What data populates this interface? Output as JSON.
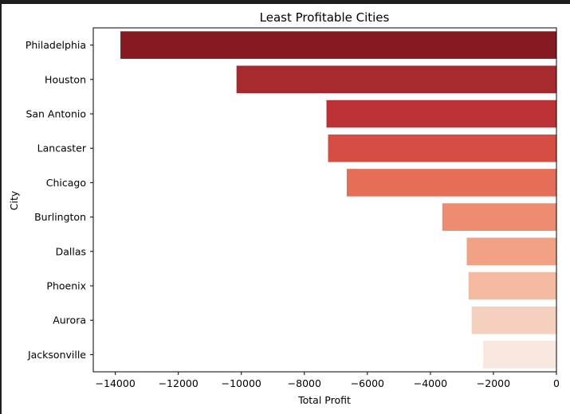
{
  "chart_data": {
    "type": "bar",
    "orientation": "horizontal",
    "title": "Least Profitable Cities",
    "xlabel": "Total Profit",
    "ylabel": "City",
    "categories": [
      "Philadelphia",
      "Houston",
      "San Antonio",
      "Lancaster",
      "Chicago",
      "Burlington",
      "Dallas",
      "Phoenix",
      "Aurora",
      "Jacksonville"
    ],
    "values": [
      -13838,
      -10154,
      -7299,
      -7249,
      -6655,
      -3623,
      -2847,
      -2790,
      -2692,
      -2324
    ],
    "colors": [
      "#861a22",
      "#a72a2e",
      "#bc3236",
      "#d64d43",
      "#e66d57",
      "#ed8b70",
      "#f1a285",
      "#f4b9a1",
      "#f6d0bf",
      "#f8e7df"
    ],
    "xlim": [
      -14700,
      0
    ],
    "xticks": [
      -14000,
      -12000,
      -10000,
      -8000,
      -6000,
      -4000,
      -2000,
      0
    ],
    "xtick_labels": [
      "−14000",
      "−12000",
      "−10000",
      "−8000",
      "−6000",
      "−4000",
      "−2000",
      "0"
    ],
    "grid": false,
    "legend": "none"
  }
}
